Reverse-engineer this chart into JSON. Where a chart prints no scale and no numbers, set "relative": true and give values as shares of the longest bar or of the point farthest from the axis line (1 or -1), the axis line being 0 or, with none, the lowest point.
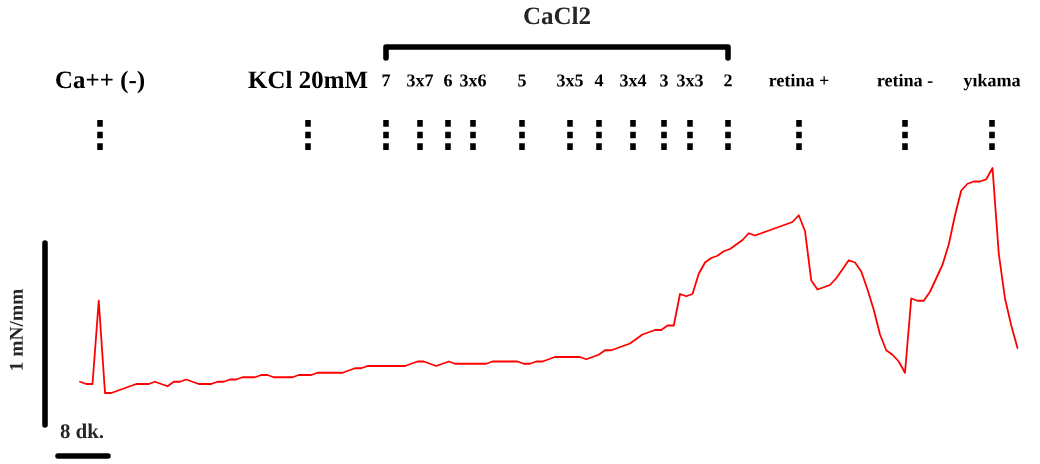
{
  "chart_data": {
    "type": "line",
    "relative": true,
    "xlabel": "8 dk.",
    "ylabel": "1 mN/mm",
    "legend": false,
    "marker": "none",
    "line_style": "solid",
    "categories": [
      null,
      null,
      null,
      null,
      null,
      null,
      null,
      null,
      null,
      null,
      null,
      null,
      null,
      null,
      null,
      null,
      null,
      null,
      null,
      null,
      null,
      null,
      null,
      null,
      null,
      null,
      null,
      null,
      null,
      null,
      null,
      null,
      null,
      null,
      null,
      null,
      null,
      null,
      null,
      null,
      null,
      null,
      null,
      null,
      null,
      null,
      null,
      null,
      null,
      null,
      null,
      null,
      null,
      null,
      null,
      null,
      null,
      null,
      null,
      null,
      null,
      null,
      null,
      null,
      null,
      null,
      null,
      null,
      null,
      null,
      null,
      null,
      null,
      null,
      null,
      null,
      null,
      null,
      null,
      null,
      null,
      null,
      null,
      null,
      null,
      null,
      null,
      null,
      null,
      null,
      null,
      null,
      null,
      null,
      null,
      null,
      null,
      null,
      null,
      null,
      null,
      null,
      null,
      null,
      null,
      null,
      null,
      null,
      null,
      null,
      null,
      null,
      null,
      null,
      null,
      null,
      null,
      null,
      null,
      null,
      null,
      null,
      null,
      null,
      null,
      null,
      null,
      null,
      null,
      null,
      null,
      null,
      null,
      null,
      null,
      null,
      null,
      null,
      null,
      null,
      null,
      null,
      null,
      null,
      null,
      null,
      null,
      null,
      null,
      null,
      null
    ],
    "series": [
      {
        "color": "#ff0000",
        "values": [
          0.05,
          0.04,
          0.04,
          0.41,
          0.0,
          0.0,
          0.01,
          0.02,
          0.03,
          0.04,
          0.04,
          0.04,
          0.05,
          0.04,
          0.03,
          0.05,
          0.05,
          0.06,
          0.05,
          0.04,
          0.04,
          0.04,
          0.05,
          0.05,
          0.06,
          0.06,
          0.07,
          0.07,
          0.07,
          0.08,
          0.08,
          0.07,
          0.07,
          0.07,
          0.07,
          0.08,
          0.08,
          0.08,
          0.09,
          0.09,
          0.09,
          0.09,
          0.09,
          0.1,
          0.11,
          0.11,
          0.12,
          0.12,
          0.12,
          0.12,
          0.12,
          0.12,
          0.12,
          0.13,
          0.14,
          0.14,
          0.13,
          0.12,
          0.13,
          0.14,
          0.13,
          0.13,
          0.13,
          0.13,
          0.13,
          0.13,
          0.14,
          0.14,
          0.14,
          0.14,
          0.14,
          0.13,
          0.13,
          0.14,
          0.14,
          0.15,
          0.16,
          0.16,
          0.16,
          0.16,
          0.16,
          0.15,
          0.16,
          0.17,
          0.19,
          0.19,
          0.2,
          0.21,
          0.22,
          0.24,
          0.26,
          0.27,
          0.28,
          0.28,
          0.3,
          0.3,
          0.44,
          0.43,
          0.44,
          0.53,
          0.58,
          0.6,
          0.61,
          0.63,
          0.64,
          0.66,
          0.68,
          0.71,
          0.7,
          0.71,
          0.72,
          0.73,
          0.74,
          0.75,
          0.76,
          0.79,
          0.72,
          0.5,
          0.46,
          0.47,
          0.48,
          0.51,
          0.55,
          0.59,
          0.58,
          0.54,
          0.46,
          0.37,
          0.26,
          0.19,
          0.17,
          0.14,
          0.09,
          0.42,
          0.41,
          0.41,
          0.45,
          0.51,
          0.57,
          0.66,
          0.79,
          0.9,
          0.93,
          0.94,
          0.94,
          0.95,
          1.0,
          0.62,
          0.42,
          0.3,
          0.2
        ]
      }
    ],
    "annotations": [
      "CaCl2",
      "Ca++ (-)",
      "KCl 20mM",
      "7",
      "3x7",
      "6",
      "3x6",
      "5",
      "3x5",
      "4",
      "3x4",
      "3",
      "3x3",
      "2",
      "retina +",
      "retina -",
      "yıkama"
    ]
  }
}
